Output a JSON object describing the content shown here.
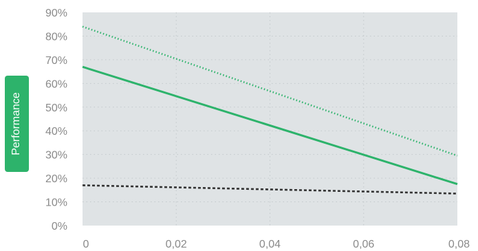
{
  "chart_data": {
    "type": "line",
    "title": "",
    "xlabel": "",
    "ylabel": "Performance",
    "xlim": [
      0,
      0.08
    ],
    "ylim": [
      0,
      0.9
    ],
    "x_ticks": [
      "0",
      "0,02",
      "0,04",
      "0,06",
      "0,08"
    ],
    "y_ticks": [
      "0%",
      "10%",
      "20%",
      "30%",
      "40%",
      "50%",
      "60%",
      "70%",
      "80%",
      "90%"
    ],
    "grid": true,
    "legend": "none",
    "series": [
      {
        "x": [
          0,
          0.08
        ],
        "y": [
          0.84,
          0.295
        ],
        "color": "#2db36b",
        "style": "dotted"
      },
      {
        "x": [
          0,
          0.08
        ],
        "y": [
          0.67,
          0.175
        ],
        "color": "#2db36b",
        "style": "solid"
      },
      {
        "x": [
          0,
          0.08
        ],
        "y": [
          0.17,
          0.135
        ],
        "color": "#333333",
        "style": "dashed"
      }
    ]
  },
  "colors": {
    "plot_background": "#dfe3e5",
    "accent": "#2db36b",
    "grid": "#c3c9cc"
  }
}
